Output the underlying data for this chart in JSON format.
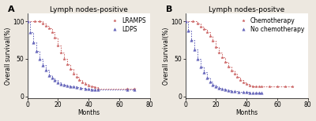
{
  "panel_A": {
    "title": "Lymph nodes-positive",
    "xlabel": "Months",
    "ylabel": "Overall survival(%)",
    "xlim": [
      0,
      80
    ],
    "ylim": [
      -2,
      110
    ],
    "xticks": [
      0,
      20,
      40,
      60,
      80
    ],
    "yticks": [
      0,
      50,
      100
    ],
    "panel_label": "A",
    "series": [
      {
        "label": "LRAMPS",
        "color": "#cc6666",
        "marker": "*",
        "x": [
          0,
          5,
          8,
          10,
          12,
          14,
          16,
          18,
          20,
          22,
          24,
          26,
          28,
          30,
          32,
          34,
          36,
          38,
          40,
          42,
          44,
          46,
          65,
          70
        ],
        "y": [
          100,
          100,
          100,
          97,
          94,
          91,
          85,
          78,
          68,
          58,
          50,
          43,
          36,
          30,
          26,
          22,
          19,
          17,
          15,
          13,
          12,
          10,
          10,
          10
        ]
      },
      {
        "label": "LDPS",
        "color": "#6666bb",
        "marker": "^",
        "x": [
          0,
          2,
          4,
          6,
          8,
          10,
          12,
          14,
          16,
          18,
          20,
          22,
          24,
          26,
          28,
          30,
          32,
          35,
          38,
          40,
          42,
          44,
          46,
          65,
          70
        ],
        "y": [
          100,
          85,
          72,
          60,
          50,
          42,
          35,
          28,
          25,
          22,
          19,
          17,
          16,
          15,
          14,
          13,
          12,
          11,
          10,
          10,
          9,
          9,
          9,
          9,
          9
        ]
      }
    ]
  },
  "panel_B": {
    "title": "Lymph nodes-positve",
    "xlabel": "Months",
    "ylabel": "Overall survival(%)",
    "xlim": [
      0,
      80
    ],
    "ylim": [
      -2,
      110
    ],
    "xticks": [
      0,
      20,
      40,
      60,
      80
    ],
    "yticks": [
      0,
      50,
      100
    ],
    "panel_label": "B",
    "series": [
      {
        "label": "Chemotherapy",
        "color": "#cc6666",
        "marker": "*",
        "x": [
          0,
          5,
          8,
          10,
          12,
          14,
          16,
          18,
          20,
          22,
          24,
          26,
          28,
          30,
          32,
          34,
          36,
          38,
          40,
          42,
          44,
          46,
          48,
          50,
          55,
          60,
          65,
          70
        ],
        "y": [
          100,
          100,
          97,
          93,
          90,
          85,
          80,
          74,
          66,
          58,
          52,
          46,
          40,
          34,
          30,
          26,
          22,
          19,
          17,
          15,
          14,
          13,
          13,
          13,
          13,
          13,
          13,
          13
        ]
      },
      {
        "label": "No chemotherapy",
        "color": "#6666bb",
        "marker": "^",
        "x": [
          0,
          2,
          4,
          6,
          8,
          10,
          12,
          14,
          16,
          18,
          20,
          22,
          24,
          26,
          28,
          30,
          32,
          35,
          38,
          40,
          42,
          44,
          46,
          48,
          50
        ],
        "y": [
          100,
          88,
          75,
          62,
          50,
          40,
          32,
          25,
          20,
          16,
          13,
          11,
          10,
          9,
          8,
          7,
          7,
          6,
          6,
          6,
          5,
          5,
          5,
          5,
          5
        ]
      }
    ]
  },
  "fig_bg": "#ede8e0",
  "ax_bg": "#ffffff",
  "title_fontsize": 6.5,
  "axis_label_fontsize": 5.5,
  "tick_fontsize": 5.5,
  "legend_fontsize": 5.5,
  "marker_size": 2.5,
  "linewidth": 0.75
}
